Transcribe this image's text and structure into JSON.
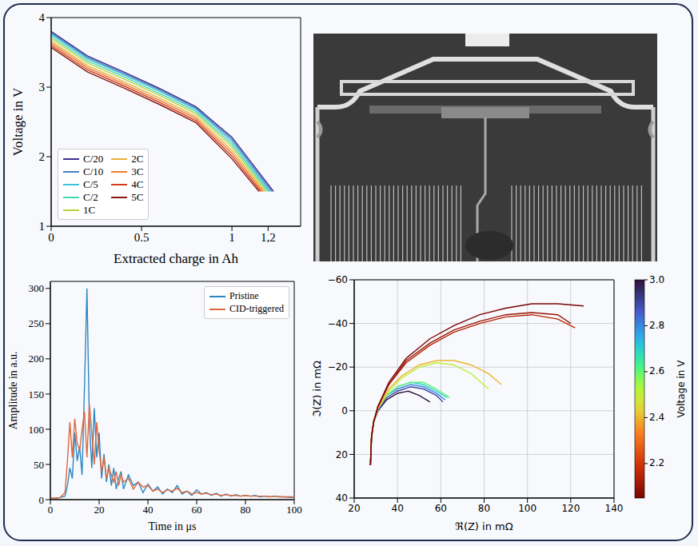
{
  "chart_data": [
    {
      "type": "line",
      "x_label": "Extracted charge in Ah",
      "y_label": "Voltage in V",
      "xlim": [
        0,
        1.38
      ],
      "xticks": [
        0,
        0.5,
        1,
        {
          "value": 1.2,
          "label": "1,2"
        }
      ],
      "ylim": [
        1,
        4
      ],
      "yticks": [
        1,
        2,
        3,
        4
      ],
      "legend": "lower left",
      "series": [
        {
          "name": "C/20",
          "color": "#3b2f8f",
          "x": [
            0,
            0.2,
            0.4,
            0.6,
            0.8,
            1.0,
            1.23
          ],
          "values": [
            3.8,
            3.45,
            3.22,
            2.98,
            2.72,
            2.28,
            1.5
          ]
        },
        {
          "name": "C/10",
          "color": "#4a7fc1",
          "x": [
            0,
            0.2,
            0.4,
            0.6,
            0.8,
            1.0,
            1.22
          ],
          "values": [
            3.78,
            3.43,
            3.2,
            2.96,
            2.7,
            2.25,
            1.5
          ]
        },
        {
          "name": "C/5",
          "color": "#3fc1d8",
          "x": [
            0,
            0.2,
            0.4,
            0.6,
            0.8,
            1.0,
            1.21
          ],
          "values": [
            3.76,
            3.41,
            3.18,
            2.94,
            2.68,
            2.22,
            1.5
          ]
        },
        {
          "name": "C/2",
          "color": "#46d9b0",
          "x": [
            0,
            0.2,
            0.4,
            0.6,
            0.8,
            1.0,
            1.2
          ],
          "values": [
            3.73,
            3.38,
            3.15,
            2.91,
            2.65,
            2.18,
            1.5
          ]
        },
        {
          "name": "1C",
          "color": "#b8d43a",
          "x": [
            0,
            0.2,
            0.4,
            0.6,
            0.8,
            1.0,
            1.19
          ],
          "values": [
            3.7,
            3.35,
            3.12,
            2.88,
            2.62,
            2.14,
            1.5
          ]
        },
        {
          "name": "2C",
          "color": "#e8b03a",
          "x": [
            0,
            0.2,
            0.4,
            0.6,
            0.8,
            1.0,
            1.18
          ],
          "values": [
            3.66,
            3.31,
            3.08,
            2.84,
            2.58,
            2.09,
            1.5
          ]
        },
        {
          "name": "3C",
          "color": "#f07a2a",
          "x": [
            0,
            0.2,
            0.4,
            0.6,
            0.8,
            1.0,
            1.17
          ],
          "values": [
            3.63,
            3.28,
            3.05,
            2.81,
            2.55,
            2.05,
            1.5
          ]
        },
        {
          "name": "4C",
          "color": "#d23a1e",
          "x": [
            0,
            0.2,
            0.4,
            0.6,
            0.8,
            1.0,
            1.16
          ],
          "values": [
            3.6,
            3.25,
            3.02,
            2.78,
            2.52,
            2.01,
            1.5
          ]
        },
        {
          "name": "5C",
          "color": "#8b1a0e",
          "x": [
            0,
            0.2,
            0.4,
            0.6,
            0.8,
            1.0,
            1.15
          ],
          "values": [
            3.57,
            3.22,
            2.99,
            2.75,
            2.49,
            1.97,
            1.5
          ]
        }
      ]
    },
    {
      "type": "line",
      "x_label": "Time in μs",
      "y_label": "Amplitude in a.u.",
      "xlim": [
        0,
        100
      ],
      "xticks": [
        0,
        20,
        40,
        60,
        80,
        100
      ],
      "ylim": [
        0,
        310
      ],
      "yticks": [
        0,
        50,
        100,
        150,
        200,
        250,
        300
      ],
      "legend": "upper right",
      "x": [
        0,
        2,
        4,
        6,
        7,
        8,
        9,
        10,
        11,
        12,
        13,
        14,
        15,
        16,
        17,
        18,
        19,
        20,
        21,
        22,
        23,
        24,
        25,
        26,
        27,
        28,
        29,
        30,
        32,
        34,
        36,
        38,
        40,
        42,
        44,
        46,
        48,
        50,
        52,
        54,
        56,
        58,
        60,
        62,
        64,
        66,
        68,
        70,
        72,
        74,
        76,
        78,
        80,
        82,
        84,
        86,
        88,
        90,
        92,
        94,
        96,
        98,
        100
      ],
      "series": [
        {
          "name": "Pristine",
          "color": "#2e86c1",
          "values": [
            2,
            2,
            3,
            5,
            20,
            45,
            30,
            95,
            55,
            75,
            35,
            160,
            300,
            110,
            45,
            130,
            60,
            95,
            30,
            65,
            25,
            50,
            20,
            45,
            15,
            30,
            40,
            15,
            35,
            20,
            25,
            10,
            22,
            12,
            18,
            8,
            15,
            10,
            20,
            8,
            12,
            6,
            14,
            8,
            10,
            6,
            9,
            5,
            8,
            5,
            7,
            5,
            6,
            5,
            6,
            4,
            5,
            4,
            5,
            4,
            4,
            3,
            3
          ]
        },
        {
          "name": "CID-triggered",
          "color": "#e0683c",
          "values": [
            2,
            2,
            3,
            10,
            55,
            110,
            60,
            115,
            80,
            70,
            100,
            125,
            60,
            135,
            95,
            50,
            110,
            70,
            40,
            60,
            30,
            45,
            35,
            25,
            40,
            20,
            35,
            25,
            30,
            15,
            25,
            18,
            20,
            12,
            15,
            10,
            14,
            12,
            16,
            10,
            12,
            8,
            10,
            8,
            9,
            7,
            8,
            6,
            7,
            6,
            6,
            5,
            6,
            5,
            5,
            5,
            5,
            4,
            5,
            4,
            4,
            4,
            4
          ]
        }
      ]
    },
    {
      "type": "line",
      "x_label": "ℜ(Z) in mΩ",
      "y_label": "ℑ(Z) in mΩ",
      "xlim": [
        20,
        140
      ],
      "xticks": [
        20,
        40,
        60,
        80,
        100,
        120,
        140
      ],
      "ylim": [
        40,
        -60
      ],
      "yticks": [
        40,
        20,
        0,
        {
          "value": -20,
          "label": "−20"
        },
        {
          "value": -40,
          "label": "−40"
        },
        {
          "value": -60,
          "label": "−60"
        }
      ],
      "grid": true,
      "colorbar": {
        "label": "Voltage in V",
        "range": [
          2.05,
          3.0
        ],
        "ticks": [
          2.2,
          2.4,
          2.6,
          2.8,
          {
            "value": 3,
            "label": "3.0"
          }
        ]
      },
      "series": [
        {
          "voltage": 3.0,
          "x": [
            27.5,
            28,
            29,
            31,
            35,
            40,
            45,
            50,
            55
          ],
          "values": [
            25,
            12,
            5,
            0,
            -5,
            -8,
            -9,
            -7,
            -4
          ]
        },
        {
          "voltage": 2.9,
          "x": [
            27.5,
            28,
            29,
            31,
            35,
            40,
            46,
            52,
            58,
            61
          ],
          "values": [
            25,
            12,
            5,
            0,
            -6,
            -9,
            -11,
            -10,
            -7,
            -4
          ]
        },
        {
          "voltage": 2.8,
          "x": [
            27.5,
            28,
            29,
            31,
            35,
            40,
            46,
            52,
            58,
            62
          ],
          "values": [
            25,
            12,
            5,
            -1,
            -7,
            -10,
            -12,
            -11,
            -8,
            -5
          ]
        },
        {
          "voltage": 2.7,
          "x": [
            27.5,
            28,
            29,
            31,
            35,
            40,
            46,
            52,
            58,
            63
          ],
          "values": [
            25,
            12,
            5,
            -1,
            -7,
            -11,
            -13,
            -12,
            -9,
            -6
          ]
        },
        {
          "voltage": 2.6,
          "x": [
            27.5,
            28,
            29,
            31,
            35,
            40,
            46,
            52,
            58,
            64
          ],
          "values": [
            25,
            12,
            5,
            -1,
            -7,
            -11,
            -13,
            -13,
            -10,
            -6
          ]
        },
        {
          "voltage": 2.5,
          "x": [
            27.5,
            28,
            29,
            31,
            36,
            42,
            50,
            58,
            66,
            74,
            82
          ],
          "values": [
            25,
            12,
            5,
            -1,
            -9,
            -15,
            -20,
            -22,
            -21,
            -17,
            -10
          ]
        },
        {
          "voltage": 2.4,
          "x": [
            27.5,
            28,
            29,
            31,
            36,
            42,
            50,
            58,
            66,
            74,
            82,
            88
          ],
          "values": [
            25,
            12,
            5,
            -1,
            -10,
            -16,
            -21,
            -23,
            -23,
            -21,
            -17,
            -12
          ]
        },
        {
          "voltage": 2.15,
          "x": [
            27.5,
            28,
            29,
            31,
            36,
            44,
            55,
            66,
            78,
            90,
            102,
            114,
            122
          ],
          "values": [
            25,
            12,
            5,
            -2,
            -12,
            -22,
            -30,
            -36,
            -40,
            -43,
            -44,
            -42,
            -38
          ]
        },
        {
          "voltage": 2.1,
          "x": [
            27.5,
            28,
            29,
            31,
            36,
            44,
            55,
            66,
            78,
            90,
            102,
            114,
            120
          ],
          "values": [
            25,
            12,
            5,
            -2,
            -12,
            -23,
            -31,
            -37,
            -41,
            -44,
            -45,
            -44,
            -40
          ]
        },
        {
          "voltage": 2.05,
          "x": [
            27.5,
            28,
            29,
            31,
            36,
            44,
            55,
            66,
            78,
            90,
            102,
            114,
            126
          ],
          "values": [
            25,
            12,
            5,
            -2,
            -13,
            -24,
            -33,
            -39,
            -44,
            -47,
            -49,
            -49,
            -48
          ]
        }
      ]
    }
  ]
}
